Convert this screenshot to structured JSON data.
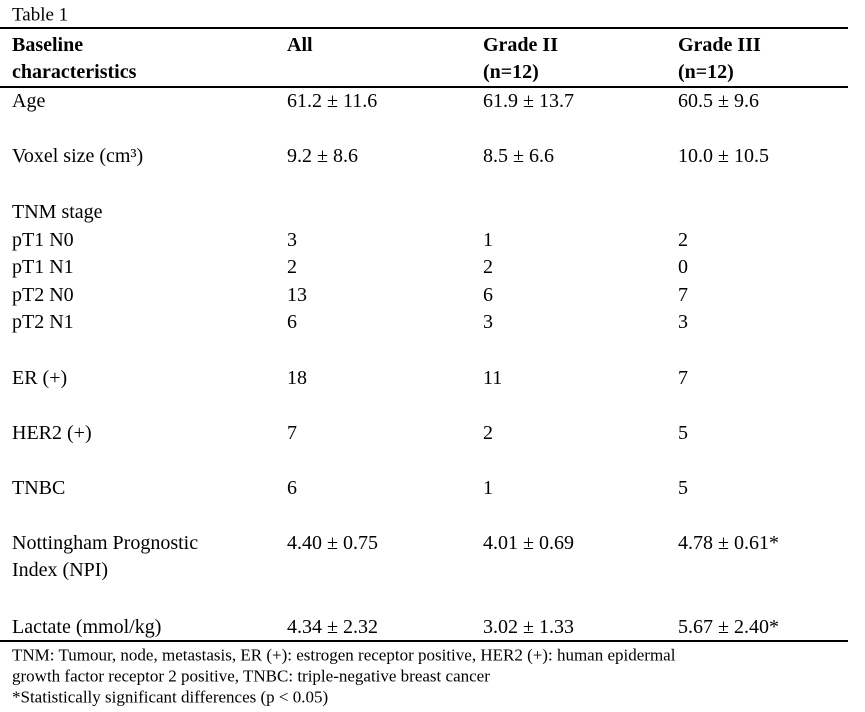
{
  "title": "Table 1",
  "table": {
    "header": [
      [
        "Baseline",
        "characteristics"
      ],
      [
        "All"
      ],
      [
        "Grade II",
        "(n=12)"
      ],
      [
        "Grade III",
        "(n=12)"
      ]
    ],
    "rows": [
      [
        "Age",
        "61.2 ± 11.6",
        "61.9 ± 13.7",
        "60.5 ± 9.6"
      ],
      [
        "Voxel size (cm³)",
        "9.2 ± 8.6",
        "8.5 ± 6.6",
        "10.0 ± 10.5"
      ],
      [
        "TNM stage"
      ],
      [
        "pT1 N0",
        3,
        1,
        2
      ],
      [
        "pT1 N1",
        2,
        2,
        0
      ],
      [
        "pT2 N0",
        13,
        6,
        7
      ],
      [
        "pT2 N1",
        6,
        3,
        3
      ],
      [
        "ER (+)",
        18,
        11,
        7
      ],
      [
        "HER2 (+)",
        7,
        2,
        5
      ],
      [
        "TNBC",
        6,
        1,
        5
      ],
      [
        [
          "Nottingham Prognostic",
          "Index (NPI)"
        ],
        "4.40 ± 0.75",
        "4.01 ± 0.69",
        "4.78 ± 0.61*"
      ],
      [
        "Lactate (mmol/kg)",
        "4.34 ± 2.32",
        "3.02 ± 1.33",
        "5.67 ± 2.40*"
      ]
    ]
  },
  "footnotes": [
    "TNM: Tumour, node, metastasis, ER (+): estrogen receptor positive, HER2 (+): human epidermal",
    "growth factor receptor 2 positive, TNBC: triple-negative breast cancer",
    "*Statistically significant differences (p < 0.05)"
  ]
}
